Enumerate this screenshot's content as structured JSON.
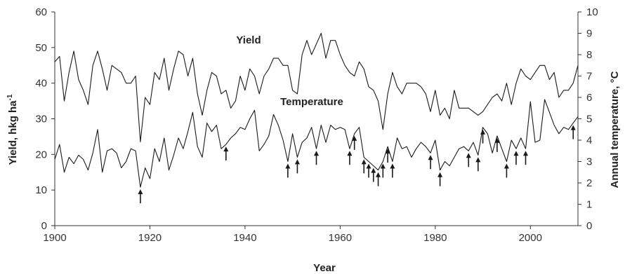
{
  "chart_data": {
    "type": "line",
    "xlabel": "Year",
    "ylabel_left_text": "Yield, hkg ha",
    "ylabel_left_sup": "-1",
    "ylabel_right": "Annual temperature, °C",
    "xlim": [
      1900,
      2010
    ],
    "ylim_left": [
      0,
      60
    ],
    "ylim_right": [
      0,
      10
    ],
    "x_ticks": [
      "1900",
      "1920",
      "1940",
      "1960",
      "1980",
      "2000"
    ],
    "y_left_ticks": [
      "0",
      "10",
      "20",
      "30",
      "40",
      "50",
      "60"
    ],
    "y_right_ticks": [
      "0",
      "1",
      "2",
      "3",
      "4",
      "5",
      "6",
      "7",
      "8",
      "9",
      "10"
    ],
    "line_color": "#1a1a1a",
    "series": [
      {
        "name": "Yield",
        "axis": "left",
        "x": [
          1900,
          1901,
          1902,
          1903,
          1904,
          1905,
          1906,
          1907,
          1908,
          1909,
          1910,
          1911,
          1912,
          1913,
          1914,
          1915,
          1916,
          1917,
          1918,
          1919,
          1920,
          1921,
          1922,
          1923,
          1924,
          1925,
          1926,
          1927,
          1928,
          1929,
          1930,
          1931,
          1932,
          1933,
          1934,
          1935,
          1936,
          1937,
          1938,
          1939,
          1940,
          1941,
          1942,
          1943,
          1944,
          1945,
          1946,
          1947,
          1948,
          1949,
          1950,
          1951,
          1952,
          1953,
          1954,
          1955,
          1956,
          1957,
          1958,
          1959,
          1960,
          1961,
          1962,
          1963,
          1964,
          1965,
          1966,
          1967,
          1968,
          1969,
          1970,
          1971,
          1972,
          1973,
          1974,
          1975,
          1976,
          1977,
          1978,
          1979,
          1980,
          1981,
          1982,
          1983,
          1984,
          1985,
          1986,
          1987,
          1988,
          1989,
          1990,
          1991,
          1992,
          1993,
          1994,
          1995,
          1996,
          1997,
          1998,
          1999,
          2000,
          2001,
          2002,
          2003,
          2004,
          2005,
          2006,
          2007,
          2008,
          2009,
          2010
        ],
        "values": [
          46,
          47.5,
          35,
          43,
          49,
          41,
          38,
          34,
          45,
          49,
          44,
          38,
          45,
          44,
          43,
          40,
          40,
          42,
          23.5,
          36,
          34,
          43,
          41,
          47,
          38,
          44,
          49,
          48,
          42,
          47,
          37,
          31,
          38,
          43,
          42,
          37,
          38,
          33,
          35,
          42,
          38,
          44,
          42,
          37,
          42,
          44,
          47,
          47,
          45,
          45,
          38,
          37,
          48,
          52,
          48,
          51,
          54,
          47,
          52,
          52,
          48,
          45,
          43,
          42,
          46,
          44,
          39,
          38,
          35,
          27,
          37,
          43,
          39,
          37,
          40,
          40,
          40,
          39,
          37,
          32,
          38,
          31,
          33,
          30,
          38,
          33,
          33,
          33,
          32,
          31,
          32,
          34,
          36,
          37,
          35,
          40,
          34,
          40,
          44,
          42,
          41,
          43,
          45,
          45,
          41,
          43,
          36,
          38,
          38,
          40,
          45
        ]
      },
      {
        "name": "Temperature",
        "axis": "right",
        "x": [
          1900,
          1901,
          1902,
          1903,
          1904,
          1905,
          1906,
          1907,
          1908,
          1909,
          1910,
          1911,
          1912,
          1913,
          1914,
          1915,
          1916,
          1917,
          1918,
          1919,
          1920,
          1921,
          1922,
          1923,
          1924,
          1925,
          1926,
          1927,
          1928,
          1929,
          1930,
          1931,
          1932,
          1933,
          1934,
          1935,
          1936,
          1937,
          1938,
          1939,
          1940,
          1941,
          1942,
          1943,
          1944,
          1945,
          1946,
          1947,
          1948,
          1949,
          1950,
          1951,
          1952,
          1953,
          1954,
          1955,
          1956,
          1957,
          1958,
          1959,
          1960,
          1961,
          1962,
          1963,
          1964,
          1965,
          1966,
          1967,
          1968,
          1969,
          1970,
          1971,
          1972,
          1973,
          1974,
          1975,
          1976,
          1977,
          1978,
          1979,
          1980,
          1981,
          1982,
          1983,
          1984,
          1985,
          1986,
          1987,
          1988,
          1989,
          1990,
          1991,
          1992,
          1993,
          1994,
          1995,
          1996,
          1997,
          1998,
          1999,
          2000,
          2001,
          2002,
          2003,
          2004,
          2005,
          2006,
          2007,
          2008,
          2009,
          2010
        ],
        "values": [
          3.1,
          3.8,
          2.5,
          3.2,
          2.9,
          3.3,
          3.1,
          2.6,
          3.4,
          4.5,
          2.5,
          3.5,
          3.6,
          3.4,
          2.7,
          3.0,
          3.6,
          3.5,
          1.8,
          2.7,
          2.2,
          3.6,
          3.0,
          4.1,
          2.6,
          3.3,
          4.1,
          3.6,
          4.4,
          5.3,
          3.7,
          3.2,
          4.8,
          4.4,
          4.7,
          3.6,
          3.8,
          4.1,
          4.3,
          4.6,
          4.5,
          5.0,
          5.4,
          3.5,
          3.8,
          4.2,
          5.2,
          4.7,
          4.0,
          3.0,
          4.3,
          3.2,
          3.9,
          4.1,
          4.6,
          3.6,
          4.7,
          3.9,
          4.7,
          4.5,
          4.6,
          4.5,
          3.6,
          4.3,
          4.6,
          3.2,
          3.0,
          2.8,
          2.6,
          3.0,
          3.7,
          3.0,
          4.1,
          3.6,
          3.7,
          3.2,
          3.6,
          3.9,
          3.7,
          3.4,
          4.0,
          2.6,
          3.0,
          2.8,
          3.2,
          3.6,
          3.7,
          3.5,
          3.9,
          3.3,
          4.6,
          4.3,
          3.4,
          4.2,
          3.6,
          3.0,
          4.0,
          3.6,
          4.1,
          3.6,
          5.8,
          3.9,
          4.0,
          5.9,
          5.3,
          4.7,
          4.3,
          4.6,
          4.5,
          4.8,
          5.1
        ]
      }
    ],
    "arrow_years": [
      1918,
      1936,
      1949,
      1951,
      1955,
      1962,
      1963,
      1965,
      1966,
      1967,
      1968,
      1969,
      1970,
      1971,
      1979,
      1981,
      1987,
      1989,
      1990,
      1993,
      1995,
      1997,
      1999,
      2009
    ]
  }
}
